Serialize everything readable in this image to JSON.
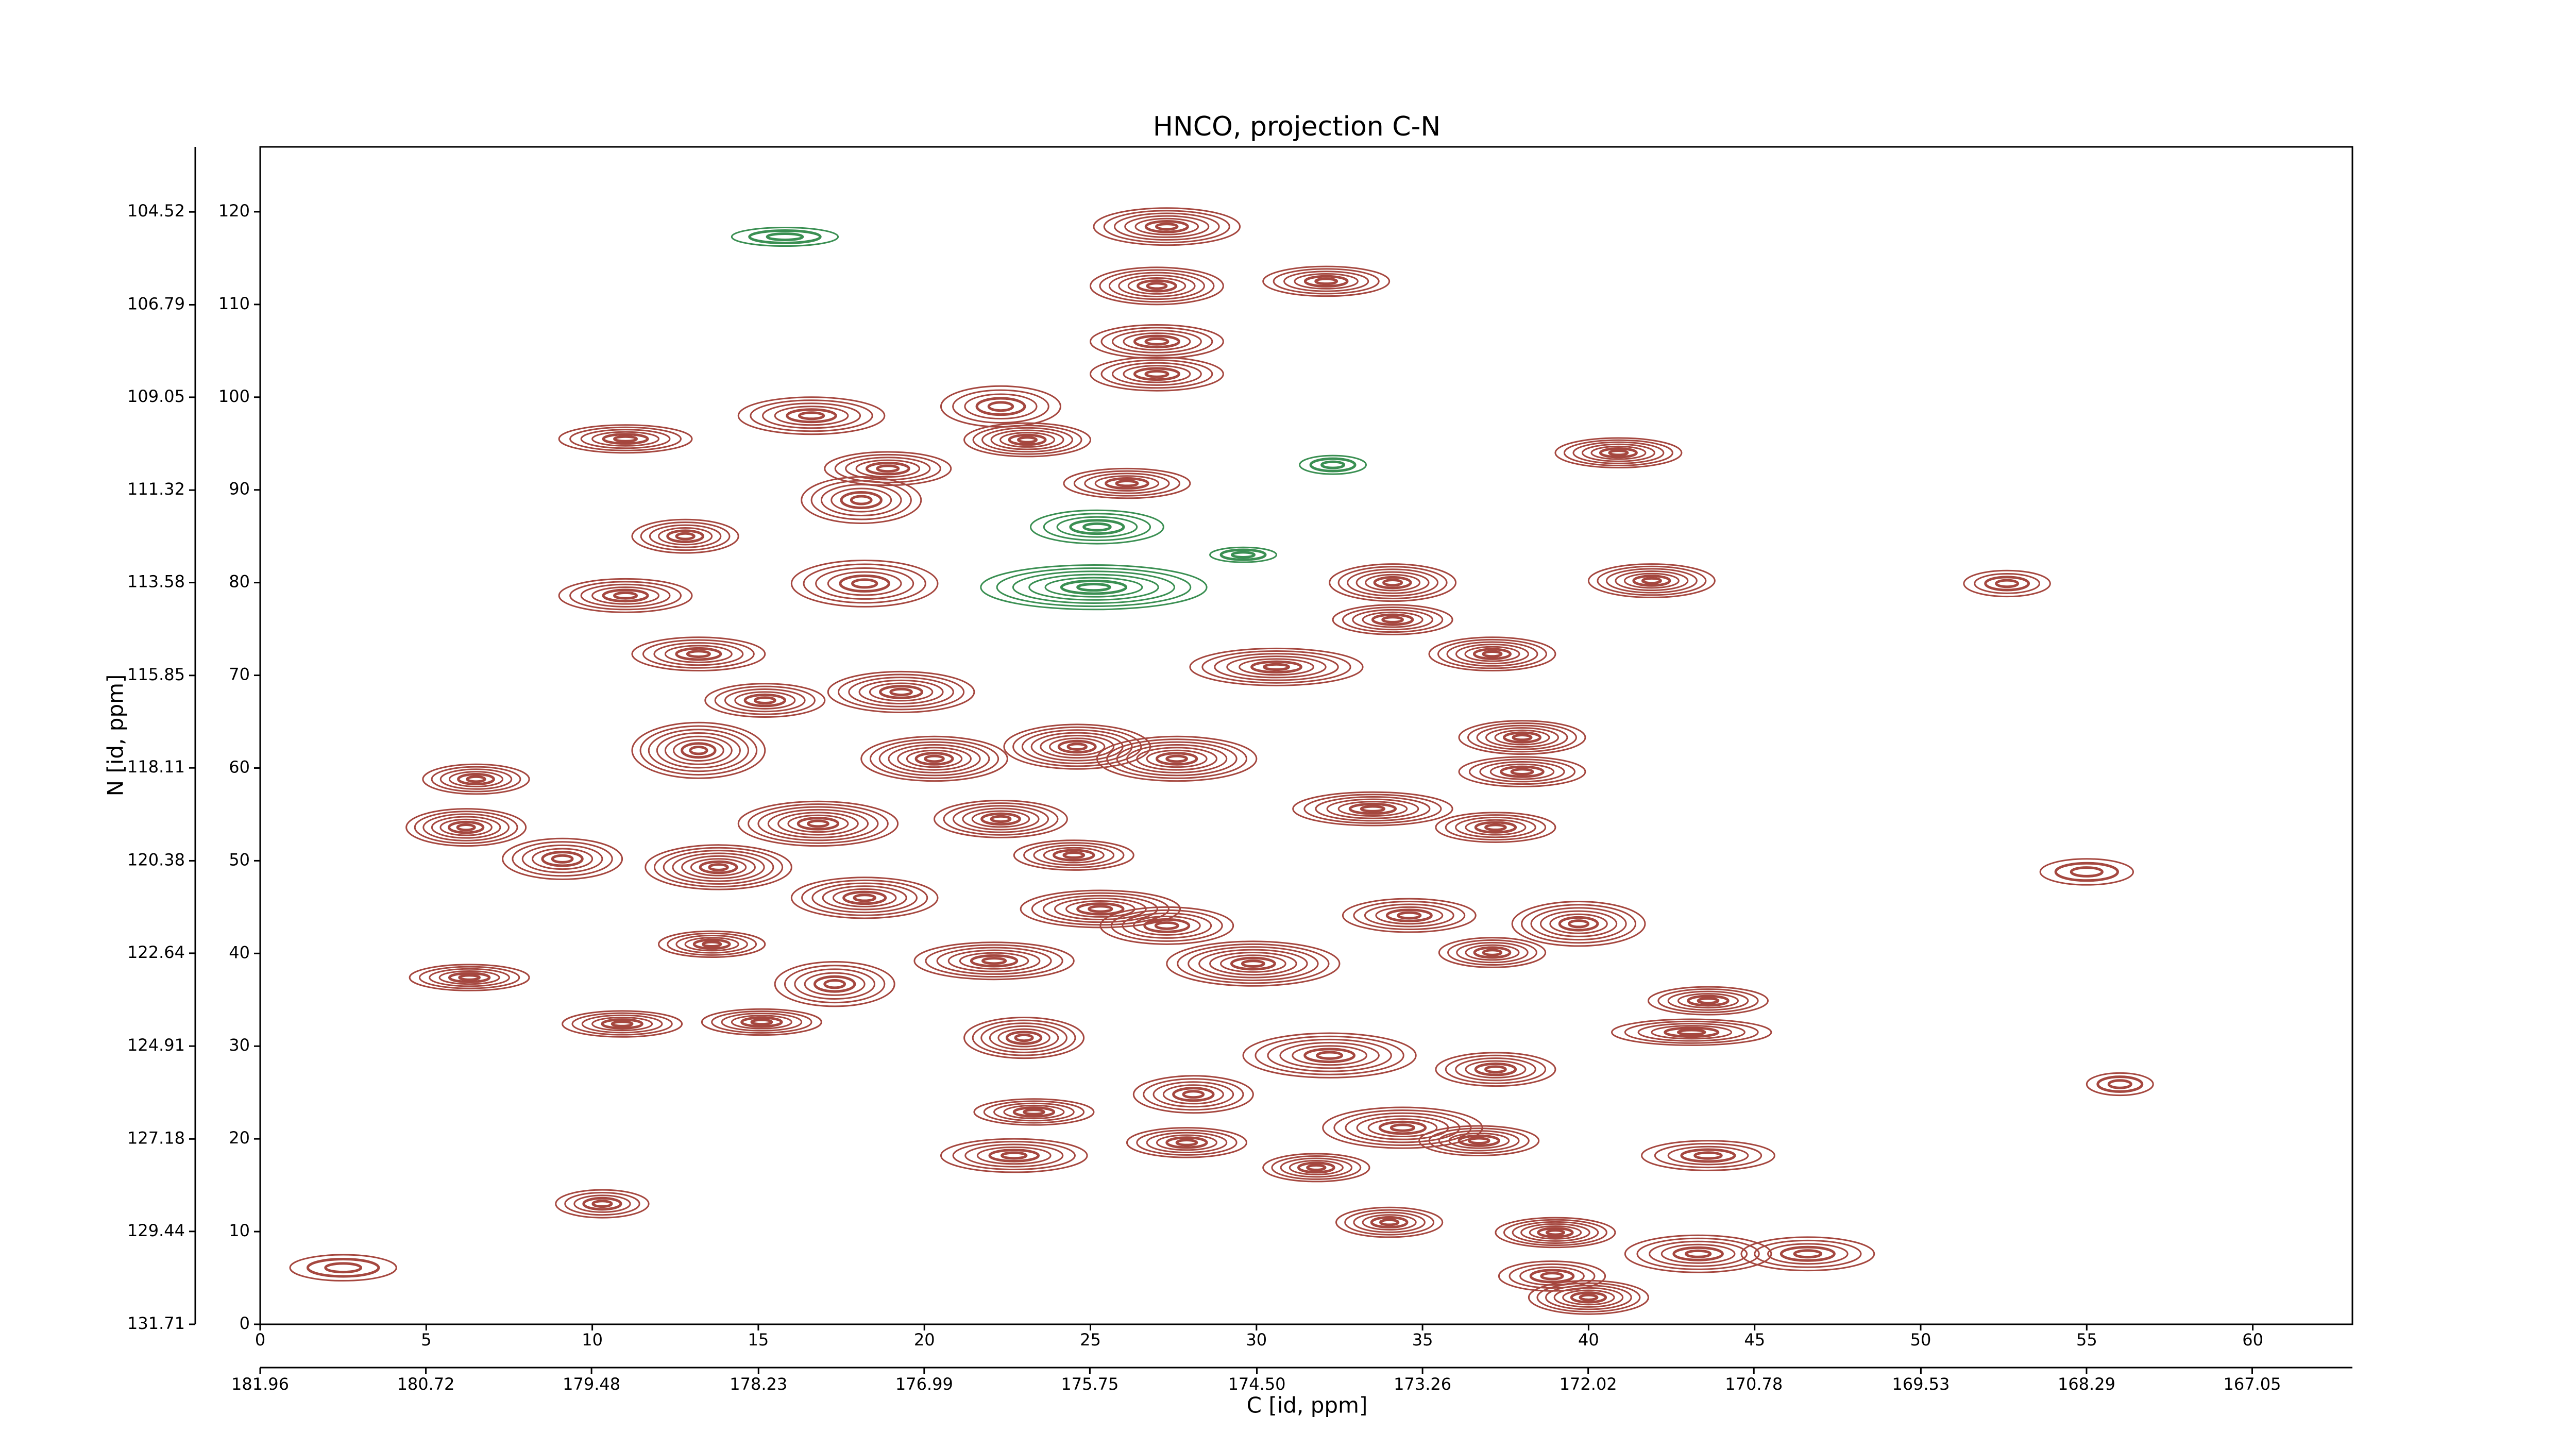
{
  "chart_data": {
    "type": "contour",
    "title": "HNCO, projection C-N",
    "xlabel": "C [id, ppm]",
    "ylabel": "N [id, ppm]",
    "xlim": [
      0,
      63
    ],
    "xticks": [
      0,
      5,
      10,
      15,
      20,
      25,
      30,
      35,
      40,
      45,
      50,
      55,
      60
    ],
    "ylim": [
      0,
      127
    ],
    "yticks": [
      0,
      10,
      20,
      30,
      40,
      50,
      60,
      70,
      80,
      90,
      100,
      110,
      120
    ],
    "x2lim": [
      181.96,
      166.3
    ],
    "x2ticks": [
      181.96,
      180.72,
      179.48,
      178.23,
      176.99,
      175.75,
      {
        "value": 174.5,
        "label": "174.50"
      },
      173.26,
      172.02,
      170.78,
      169.53,
      168.29,
      167.05
    ],
    "y2lim": [
      131.71,
      102.93
    ],
    "y2ticks": [
      131.71,
      129.44,
      127.18,
      124.91,
      122.64,
      120.38,
      118.11,
      115.85,
      113.58,
      111.32,
      109.05,
      106.79,
      104.52
    ],
    "series": [
      {
        "color": "#a5473f",
        "peaks": [
          {
            "x": 27.3,
            "y": 118.4,
            "rx": 2.2,
            "ry": 2.0,
            "levels": 7
          },
          {
            "x": 27.0,
            "y": 112.0,
            "rx": 2.0,
            "ry": 2.0,
            "levels": 7
          },
          {
            "x": 32.1,
            "y": 112.5,
            "rx": 1.9,
            "ry": 1.6,
            "levels": 6
          },
          {
            "x": 27.0,
            "y": 106.0,
            "rx": 2.0,
            "ry": 1.8,
            "levels": 6
          },
          {
            "x": 27.0,
            "y": 102.5,
            "rx": 2.0,
            "ry": 1.8,
            "levels": 6
          },
          {
            "x": 22.3,
            "y": 99.0,
            "rx": 1.8,
            "ry": 2.2,
            "levels": 5
          },
          {
            "x": 23.1,
            "y": 95.4,
            "rx": 1.9,
            "ry": 1.8,
            "levels": 7
          },
          {
            "x": 18.9,
            "y": 92.3,
            "rx": 1.9,
            "ry": 1.8,
            "levels": 6
          },
          {
            "x": 16.6,
            "y": 98.0,
            "rx": 2.2,
            "ry": 2.0,
            "levels": 6
          },
          {
            "x": 11.0,
            "y": 95.5,
            "rx": 2.0,
            "ry": 1.5,
            "levels": 6
          },
          {
            "x": 26.1,
            "y": 90.7,
            "rx": 1.9,
            "ry": 1.6,
            "levels": 6
          },
          {
            "x": 40.9,
            "y": 94.0,
            "rx": 1.9,
            "ry": 1.6,
            "levels": 7
          },
          {
            "x": 34.1,
            "y": 80.0,
            "rx": 1.9,
            "ry": 2.0,
            "levels": 7
          },
          {
            "x": 41.9,
            "y": 80.2,
            "rx": 1.9,
            "ry": 1.8,
            "levels": 7
          },
          {
            "x": 34.1,
            "y": 76.0,
            "rx": 1.8,
            "ry": 1.6,
            "levels": 6
          },
          {
            "x": 37.1,
            "y": 72.3,
            "rx": 1.9,
            "ry": 1.8,
            "levels": 7
          },
          {
            "x": 30.6,
            "y": 70.9,
            "rx": 2.6,
            "ry": 2.0,
            "levels": 7
          },
          {
            "x": 12.8,
            "y": 85.0,
            "rx": 1.6,
            "ry": 1.8,
            "levels": 6
          },
          {
            "x": 11.0,
            "y": 78.6,
            "rx": 2.0,
            "ry": 1.8,
            "levels": 6
          },
          {
            "x": 13.2,
            "y": 72.3,
            "rx": 2.0,
            "ry": 1.8,
            "levels": 6
          },
          {
            "x": 18.1,
            "y": 88.9,
            "rx": 1.8,
            "ry": 2.5,
            "levels": 6
          },
          {
            "x": 18.2,
            "y": 79.9,
            "rx": 2.2,
            "ry": 2.5,
            "levels": 6
          },
          {
            "x": 38.0,
            "y": 63.3,
            "rx": 1.9,
            "ry": 1.8,
            "levels": 7
          },
          {
            "x": 38.0,
            "y": 59.6,
            "rx": 1.9,
            "ry": 1.6,
            "levels": 6
          },
          {
            "x": 6.5,
            "y": 58.8,
            "rx": 1.6,
            "ry": 1.6,
            "levels": 6
          },
          {
            "x": 6.2,
            "y": 53.6,
            "rx": 1.8,
            "ry": 2.0,
            "levels": 7
          },
          {
            "x": 9.1,
            "y": 50.2,
            "rx": 1.8,
            "ry": 2.2,
            "levels": 6
          },
          {
            "x": 37.2,
            "y": 53.6,
            "rx": 1.8,
            "ry": 1.6,
            "levels": 6
          },
          {
            "x": 33.5,
            "y": 55.6,
            "rx": 2.4,
            "ry": 1.8,
            "levels": 7
          },
          {
            "x": 22.3,
            "y": 54.5,
            "rx": 2.0,
            "ry": 2.0,
            "levels": 7
          },
          {
            "x": 16.8,
            "y": 54.0,
            "rx": 2.4,
            "ry": 2.4,
            "levels": 8
          },
          {
            "x": 18.2,
            "y": 46.0,
            "rx": 2.2,
            "ry": 2.2,
            "levels": 7
          },
          {
            "x": 13.8,
            "y": 49.3,
            "rx": 2.2,
            "ry": 2.4,
            "levels": 8
          },
          {
            "x": 24.5,
            "y": 50.6,
            "rx": 1.8,
            "ry": 1.6,
            "levels": 6
          },
          {
            "x": 39.7,
            "y": 43.2,
            "rx": 2.0,
            "ry": 2.4,
            "levels": 7
          },
          {
            "x": 34.6,
            "y": 44.1,
            "rx": 2.0,
            "ry": 1.8,
            "levels": 6
          },
          {
            "x": 37.1,
            "y": 40.1,
            "rx": 1.6,
            "ry": 1.6,
            "levels": 6
          },
          {
            "x": 13.6,
            "y": 41.0,
            "rx": 1.6,
            "ry": 1.4,
            "levels": 6
          },
          {
            "x": 22.1,
            "y": 39.2,
            "rx": 2.4,
            "ry": 2.0,
            "levels": 7
          },
          {
            "x": 29.9,
            "y": 38.9,
            "rx": 2.6,
            "ry": 2.4,
            "levels": 8
          },
          {
            "x": 6.3,
            "y": 37.4,
            "rx": 1.8,
            "ry": 1.4,
            "levels": 6
          },
          {
            "x": 17.3,
            "y": 36.7,
            "rx": 1.8,
            "ry": 2.4,
            "levels": 6
          },
          {
            "x": 43.6,
            "y": 34.9,
            "rx": 1.8,
            "ry": 1.5,
            "levels": 6
          },
          {
            "x": 43.1,
            "y": 31.5,
            "rx": 2.4,
            "ry": 1.4,
            "levels": 6
          },
          {
            "x": 10.9,
            "y": 32.4,
            "rx": 1.8,
            "ry": 1.4,
            "levels": 6
          },
          {
            "x": 15.1,
            "y": 32.6,
            "rx": 1.8,
            "ry": 1.4,
            "levels": 6
          },
          {
            "x": 23.0,
            "y": 30.9,
            "rx": 1.8,
            "ry": 2.2,
            "levels": 7
          },
          {
            "x": 32.2,
            "y": 29.0,
            "rx": 2.6,
            "ry": 2.4,
            "levels": 7
          },
          {
            "x": 37.2,
            "y": 27.5,
            "rx": 1.8,
            "ry": 1.8,
            "levels": 6
          },
          {
            "x": 28.1,
            "y": 24.8,
            "rx": 1.8,
            "ry": 2.0,
            "levels": 6
          },
          {
            "x": 23.3,
            "y": 22.9,
            "rx": 1.8,
            "ry": 1.4,
            "levels": 6
          },
          {
            "x": 34.4,
            "y": 21.2,
            "rx": 2.4,
            "ry": 2.2,
            "levels": 7
          },
          {
            "x": 36.7,
            "y": 19.8,
            "rx": 1.8,
            "ry": 1.6,
            "levels": 6
          },
          {
            "x": 27.9,
            "y": 19.6,
            "rx": 1.8,
            "ry": 1.6,
            "levels": 6
          },
          {
            "x": 22.7,
            "y": 18.2,
            "rx": 2.2,
            "ry": 1.8,
            "levels": 6
          },
          {
            "x": 31.8,
            "y": 16.9,
            "rx": 1.6,
            "ry": 1.5,
            "levels": 6
          },
          {
            "x": 43.6,
            "y": 18.2,
            "rx": 2.0,
            "ry": 1.6,
            "levels": 5
          },
          {
            "x": 10.3,
            "y": 13.0,
            "rx": 1.4,
            "ry": 1.5,
            "levels": 5
          },
          {
            "x": 34.0,
            "y": 11.0,
            "rx": 1.6,
            "ry": 1.6,
            "levels": 6
          },
          {
            "x": 39.0,
            "y": 9.9,
            "rx": 1.8,
            "ry": 1.6,
            "levels": 7
          },
          {
            "x": 43.3,
            "y": 7.6,
            "rx": 2.2,
            "ry": 2.0,
            "levels": 6
          },
          {
            "x": 46.6,
            "y": 7.6,
            "rx": 2.0,
            "ry": 1.8,
            "levels": 5
          },
          {
            "x": 40.0,
            "y": 2.9,
            "rx": 1.8,
            "ry": 1.8,
            "levels": 7
          },
          {
            "x": 38.9,
            "y": 5.2,
            "rx": 1.6,
            "ry": 1.6,
            "levels": 5
          },
          {
            "x": 2.5,
            "y": 6.1,
            "rx": 1.6,
            "ry": 1.4,
            "levels": 3
          },
          {
            "x": 52.6,
            "y": 79.9,
            "rx": 1.3,
            "ry": 1.4,
            "levels": 4
          },
          {
            "x": 55.0,
            "y": 48.8,
            "rx": 1.4,
            "ry": 1.4,
            "levels": 3
          },
          {
            "x": 56.0,
            "y": 25.9,
            "rx": 1.0,
            "ry": 1.2,
            "levels": 3
          },
          {
            "x": 27.6,
            "y": 61.0,
            "rx": 2.4,
            "ry": 2.4,
            "levels": 8
          },
          {
            "x": 24.6,
            "y": 62.3,
            "rx": 2.2,
            "ry": 2.4,
            "levels": 8
          },
          {
            "x": 20.3,
            "y": 61.0,
            "rx": 2.2,
            "ry": 2.4,
            "levels": 8
          },
          {
            "x": 13.2,
            "y": 61.9,
            "rx": 2.0,
            "ry": 3.0,
            "levels": 8
          },
          {
            "x": 15.2,
            "y": 67.3,
            "rx": 1.8,
            "ry": 1.8,
            "levels": 6
          },
          {
            "x": 19.3,
            "y": 68.2,
            "rx": 2.2,
            "ry": 2.2,
            "levels": 7
          },
          {
            "x": 25.3,
            "y": 44.8,
            "rx": 2.4,
            "ry": 2.0,
            "levels": 7
          },
          {
            "x": 27.3,
            "y": 43.0,
            "rx": 2.0,
            "ry": 2.0,
            "levels": 6
          }
        ]
      },
      {
        "color": "#3a8f52",
        "peaks": [
          {
            "x": 25.1,
            "y": 79.5,
            "rx": 3.4,
            "ry": 2.4,
            "levels": 7
          },
          {
            "x": 25.2,
            "y": 86.0,
            "rx": 2.0,
            "ry": 1.8,
            "levels": 5
          },
          {
            "x": 15.8,
            "y": 117.3,
            "rx": 1.6,
            "ry": 1.0,
            "levels": 3
          },
          {
            "x": 32.3,
            "y": 92.7,
            "rx": 1.0,
            "ry": 1.0,
            "levels": 3
          },
          {
            "x": 29.6,
            "y": 83.0,
            "rx": 1.0,
            "ry": 0.8,
            "levels": 3
          }
        ]
      }
    ]
  }
}
